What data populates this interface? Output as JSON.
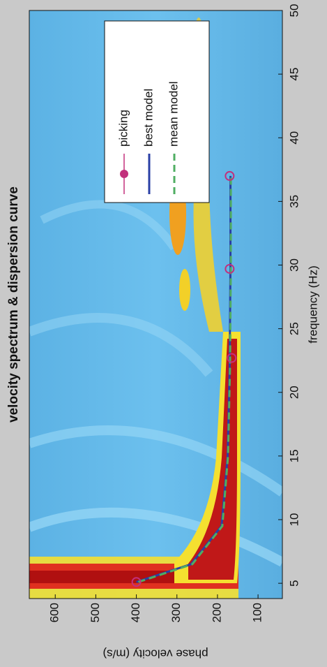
{
  "chart_data": {
    "type": "line",
    "title": "velocity spectrum & dispersion curve",
    "x_label": "frequency (Hz)",
    "y_label": "phase velocity (m/s)",
    "xlim": [
      3.8,
      50
    ],
    "xticks": [
      5,
      10,
      15,
      20,
      25,
      30,
      35,
      40,
      45,
      50
    ],
    "ylim": [
      40,
      664
    ],
    "yticks": [
      100,
      200,
      300,
      400,
      500,
      600
    ],
    "legend": "upper right",
    "series": [
      {
        "name": "picking",
        "color": "#c2307c",
        "style": "markers",
        "x": [
          5.1,
          22.7,
          29.7,
          37
        ],
        "values": [
          400,
          165,
          170,
          170
        ]
      },
      {
        "name": "best model",
        "color": "#2a3fa6",
        "style": "solid",
        "x": [
          5.1,
          6.5,
          9.5,
          15,
          22,
          30,
          37
        ],
        "values": [
          400,
          265,
          190,
          175,
          170,
          168,
          168
        ]
      },
      {
        "name": "mean model",
        "color": "#4fae62",
        "style": "dashed",
        "x": [
          5.1,
          6.5,
          9.5,
          15,
          22,
          30,
          37
        ],
        "values": [
          395,
          262,
          188,
          174,
          169,
          167,
          167
        ]
      }
    ]
  }
}
